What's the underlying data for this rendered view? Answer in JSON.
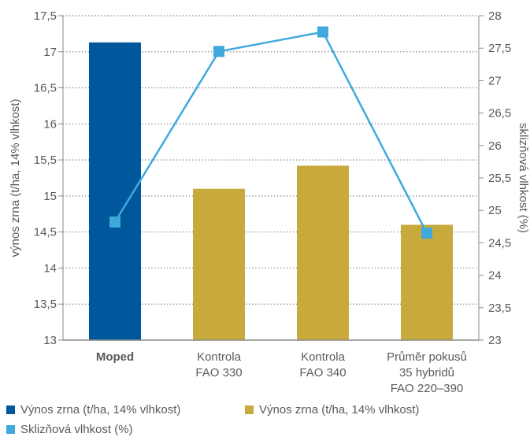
{
  "chart_data": {
    "type": "bar",
    "categories": [
      [
        "Moped"
      ],
      [
        "Kontrola",
        "FAO 330"
      ],
      [
        "Kontrola",
        "FAO 340"
      ],
      [
        "Průměr pokusů",
        "35 hybridů",
        "FAO 220–390"
      ]
    ],
    "bold_category_index": 0,
    "ylabel_left": "výnos zrna (t/ha, 14% vlhkost)",
    "ylabel_right": "sklizňová vlhkost (%)",
    "ylim_left": [
      13,
      17.5
    ],
    "ylim_right": [
      23,
      28
    ],
    "yticks_left": [
      "13",
      "13,5",
      "14",
      "14,5",
      "15",
      "15,5",
      "16",
      "16,5",
      "17",
      "17,5"
    ],
    "yticks_right": [
      "23",
      "23,5",
      "24",
      "24,5",
      "25",
      "25,5",
      "26",
      "26,5",
      "27",
      "27,5",
      "28"
    ],
    "grid": "horizontal dotted",
    "legend_position": "bottom",
    "series": [
      {
        "name": "Výnos zrna (t/ha, 14% vlhkost)",
        "kind": "bar",
        "axis": "left",
        "values": [
          17.13,
          15.1,
          15.42,
          14.6
        ],
        "colors": [
          "#00579c",
          "#c8a93c",
          "#c8a93c",
          "#c8a93c"
        ]
      },
      {
        "name": "Sklizňová vlhkost (%)",
        "kind": "line",
        "axis": "right",
        "values": [
          24.82,
          27.45,
          27.75,
          24.65
        ],
        "color": "#3fa9dc"
      }
    ],
    "legend": [
      {
        "label": "Výnos zrna (t/ha, 14% vlhkost)",
        "color": "#00579c",
        "marker": "square"
      },
      {
        "label": "Výnos zrna (t/ha, 14% vlhkost)",
        "color": "#c8a93c",
        "marker": "square"
      },
      {
        "label": "Sklizňová vlhkost (%)",
        "color": "#3fa9dc",
        "marker": "square"
      }
    ]
  }
}
